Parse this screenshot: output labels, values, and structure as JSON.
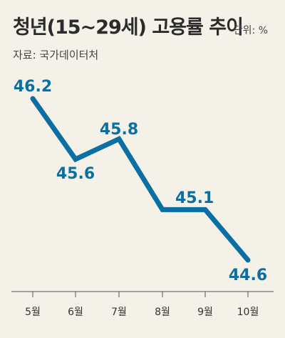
{
  "header": {
    "title": "청년(15~29세) 고용률 추이",
    "unit": "단위: %",
    "source": "자료: 국가데이터처"
  },
  "chart_data": {
    "type": "line",
    "categories": [
      "5월",
      "6월",
      "7월",
      "8월",
      "9월",
      "10월"
    ],
    "series": [
      {
        "values": [
          46.2,
          45.6,
          45.8,
          45.1,
          45.1,
          44.6
        ]
      }
    ],
    "data_labels": [
      "46.2",
      "45.6",
      "45.8",
      "45.1",
      "",
      "44.6"
    ],
    "ylim": [
      44.4,
      46.4
    ],
    "grid": false,
    "line_color": "#0b6fa4"
  }
}
